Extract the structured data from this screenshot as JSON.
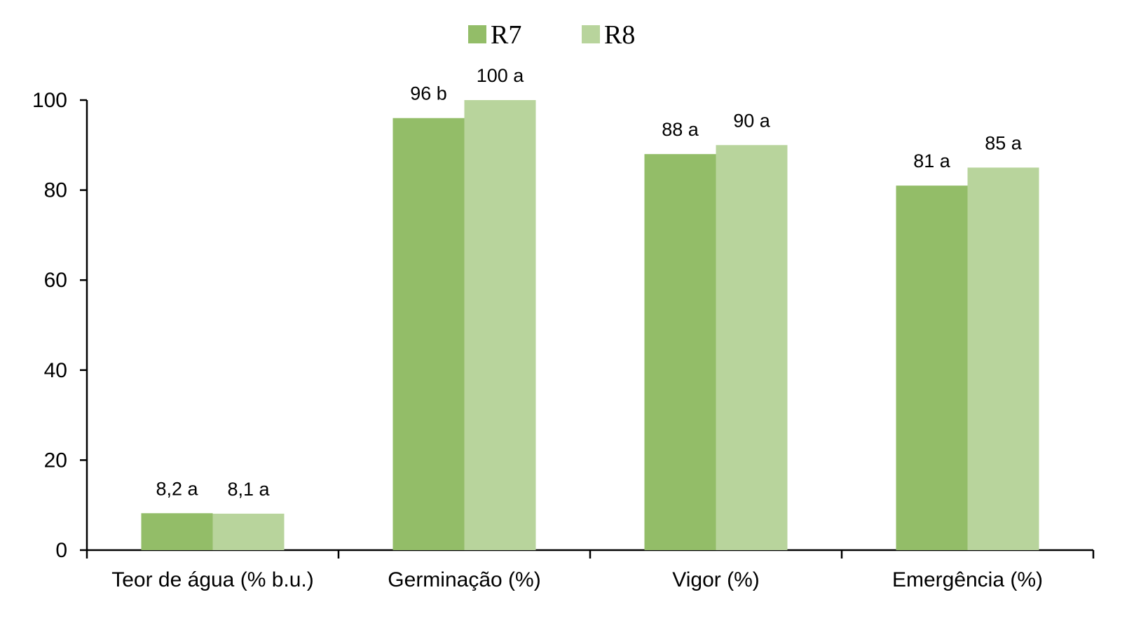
{
  "chart_data": {
    "type": "bar",
    "title": "",
    "xlabel": "",
    "ylabel": "",
    "ylim": [
      0,
      100
    ],
    "yticks": [
      0,
      20,
      40,
      60,
      80,
      100
    ],
    "ytick_labels": [
      "0",
      "20",
      "40",
      "60",
      "80",
      "100"
    ],
    "grid": false,
    "legend_position": "top-center",
    "categories": [
      "Teor de água (% b.u.)",
      "Germinação (%)",
      "Vigor (%)",
      "Emergência (%)"
    ],
    "series": [
      {
        "name": "R7",
        "color": "#93bd68",
        "values": [
          8.2,
          96,
          88,
          81
        ],
        "labels": [
          "8,2 a",
          "96 b",
          "88 a",
          "81 a"
        ]
      },
      {
        "name": "R8",
        "color": "#b8d49c",
        "values": [
          8.1,
          100,
          90,
          85
        ],
        "labels": [
          "8,1 a",
          "100 a",
          "90 a",
          "85 a"
        ]
      }
    ]
  }
}
